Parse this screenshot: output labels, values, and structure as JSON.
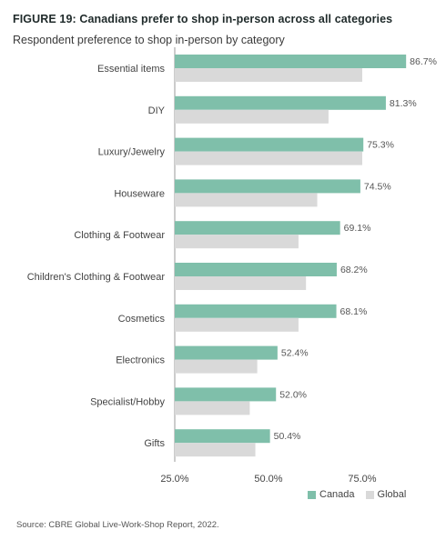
{
  "title": "FIGURE 19: Canadians prefer to shop in-person across all categories",
  "subtitle": "Respondent preference to shop in-person by category",
  "source": "Source: CBRE Global Live-Work-Shop Report, 2022.",
  "chart_data": {
    "type": "bar",
    "orientation": "horizontal",
    "title": "FIGURE 19: Canadians prefer to shop in-person across all categories",
    "subtitle": "Respondent preference to shop in-person by category",
    "categories": [
      "Essential items",
      "DIY",
      "Luxury/Jewelry",
      "Houseware",
      "Clothing & Footwear",
      "Children's Clothing & Footwear",
      "Cosmetics",
      "Electronics",
      "Specialist/Hobby",
      "Gifts"
    ],
    "series": [
      {
        "name": "Canada",
        "color": "#7fbfaa",
        "values": [
          86.7,
          81.3,
          75.3,
          74.5,
          69.1,
          68.2,
          68.1,
          52.4,
          52.0,
          50.4
        ],
        "labels": [
          "86.7%",
          "81.3%",
          "75.3%",
          "74.5%",
          "69.1%",
          "68.2%",
          "68.1%",
          "52.4%",
          "52.0%",
          "50.4%"
        ]
      },
      {
        "name": "Global",
        "color": "#d9d9d9",
        "values": [
          75.0,
          66.0,
          75.0,
          63.0,
          58.0,
          60.0,
          58.0,
          47.0,
          45.0,
          46.5
        ]
      }
    ],
    "xlim": [
      25,
      92
    ],
    "xticks": [
      25,
      50,
      75
    ],
    "xtick_labels": [
      "25.0%",
      "50.0%",
      "75.0%"
    ],
    "grid": false,
    "legend": "bottom-right"
  }
}
